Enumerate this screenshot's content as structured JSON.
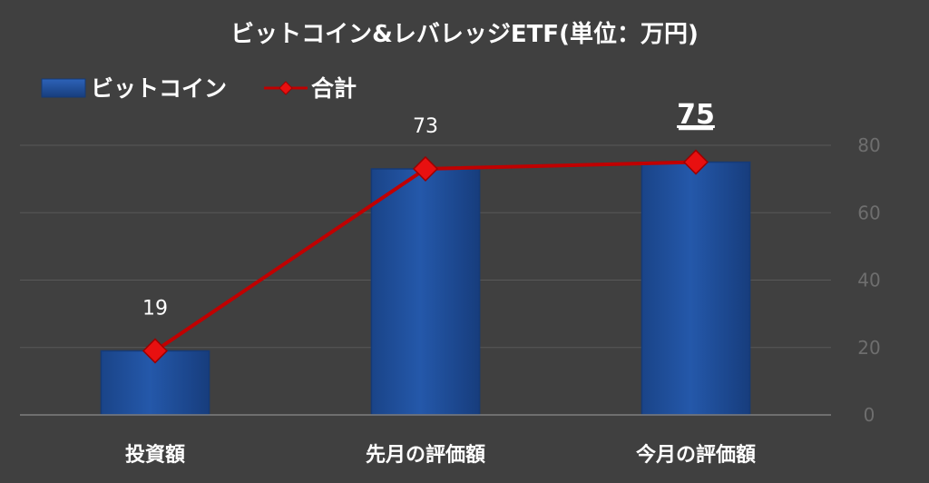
{
  "chart_data": {
    "type": "bar",
    "title": "ビットコイン&レバレッジETF(単位：万円)",
    "categories": [
      "投資額",
      "先月の評価額",
      "今月の評価額"
    ],
    "series": [
      {
        "name": "ビットコイン",
        "kind": "bar",
        "values": [
          19,
          73,
          75
        ],
        "color": "#1f4e9c"
      },
      {
        "name": "合計",
        "kind": "line",
        "values": [
          19,
          73,
          75
        ],
        "color": "#c00000"
      }
    ],
    "data_labels": [
      "19",
      "73",
      "75"
    ],
    "emphasized_label_index": 2,
    "ylim": [
      0,
      80
    ],
    "yticks": [
      0,
      20,
      40,
      60,
      80
    ],
    "y_axis_side": "right",
    "grid": true,
    "legend_position": "top-left",
    "colors": {
      "background": "#404040",
      "grid": "#595959",
      "bar": "#1f4e9c",
      "line": "#c00000",
      "text": "#ffffff",
      "tick": "#6e6e6e"
    }
  }
}
